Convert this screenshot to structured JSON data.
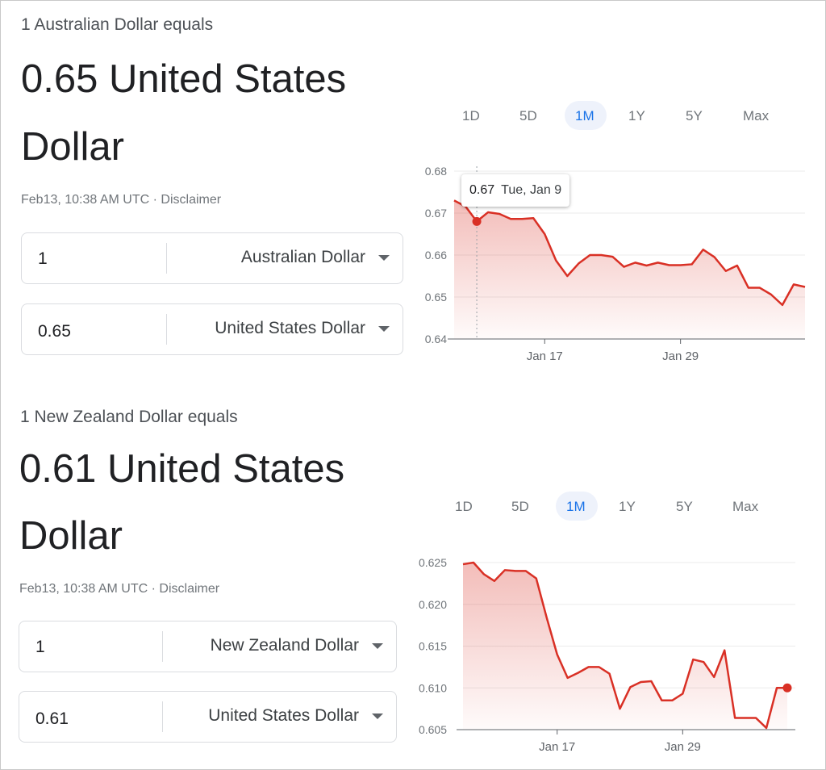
{
  "aud": {
    "equals_text": "1 Australian Dollar equals",
    "value_line1": "0.65 United States",
    "value_line2": "Dollar",
    "timestamp": "Feb13, 10:38 AM UTC",
    "separator": " · ",
    "disclaimer": "Disclaimer",
    "from": {
      "amount": "1",
      "currency": "Australian Dollar"
    },
    "to": {
      "amount": "0.65",
      "currency": "United States Dollar"
    },
    "ranges": [
      "1D",
      "5D",
      "1M",
      "1Y",
      "5Y",
      "Max"
    ],
    "active_range": "1M",
    "tooltip": {
      "value": "0.67",
      "date": "Tue, Jan 9"
    }
  },
  "nzd": {
    "equals_text": "1 New Zealand Dollar equals",
    "value_line1": "0.61 United States",
    "value_line2": "Dollar",
    "timestamp": "Feb13, 10:38 AM UTC",
    "separator": " · ",
    "disclaimer": "Disclaimer",
    "from": {
      "amount": "1",
      "currency": "New Zealand Dollar"
    },
    "to": {
      "amount": "0.61",
      "currency": "United States Dollar"
    },
    "ranges": [
      "1D",
      "5D",
      "1M",
      "1Y",
      "5Y",
      "Max"
    ],
    "active_range": "1M"
  },
  "colors": {
    "line": "#d93025",
    "accent": "#1a73e8",
    "pill": "#eef2fb",
    "grid": "#ebebeb"
  },
  "chart_data": [
    {
      "type": "area",
      "title": "",
      "ylim": [
        0.64,
        0.68
      ],
      "y_ticks": [
        "0.68",
        "0.67",
        "0.66",
        "0.65",
        "0.64"
      ],
      "x_tick_labels": [
        "Jan 17",
        "Jan 29"
      ],
      "x_tick_index": [
        8,
        20
      ],
      "highlight_index": 2,
      "series": [
        {
          "values": [
            0.673,
            0.6716,
            0.668,
            0.6702,
            0.6698,
            0.6686,
            0.6686,
            0.6688,
            0.665,
            0.6587,
            0.655,
            0.658,
            0.66,
            0.66,
            0.6596,
            0.6572,
            0.6582,
            0.6575,
            0.6582,
            0.6576,
            0.6576,
            0.6578,
            0.6613,
            0.6595,
            0.6562,
            0.6575,
            0.6522,
            0.6522,
            0.6506,
            0.6481,
            0.653,
            0.6524
          ]
        }
      ]
    },
    {
      "type": "area",
      "title": "",
      "ylim": [
        0.605,
        0.625
      ],
      "y_ticks": [
        "0.625",
        "0.620",
        "0.615",
        "0.610",
        "0.605"
      ],
      "x_tick_labels": [
        "Jan 17",
        "Jan 29"
      ],
      "x_tick_index": [
        9,
        21
      ],
      "end_marker": true,
      "series": [
        {
          "values": [
            0.6248,
            0.625,
            0.6236,
            0.6228,
            0.6241,
            0.624,
            0.624,
            0.6231,
            0.6184,
            0.614,
            0.6112,
            0.6118,
            0.6125,
            0.6125,
            0.6117,
            0.6075,
            0.6101,
            0.6107,
            0.6108,
            0.6085,
            0.6085,
            0.6093,
            0.6134,
            0.6131,
            0.6113,
            0.6145,
            0.6064,
            0.6064,
            0.6064,
            0.6052,
            0.61,
            0.61
          ]
        }
      ]
    }
  ]
}
